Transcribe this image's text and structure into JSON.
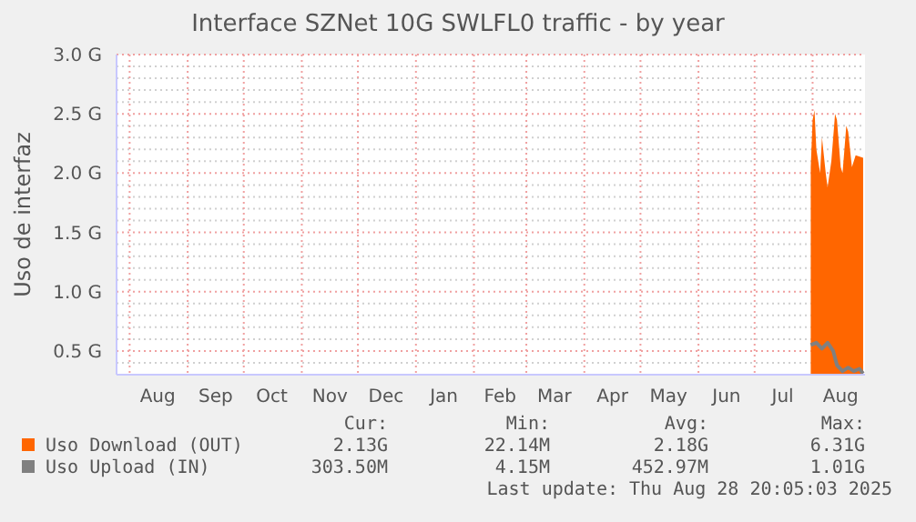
{
  "chart_data": {
    "type": "area",
    "title": "Interface SZNet 10G SWLFL0 traffic - by year",
    "ylabel": "Uso de interfaz",
    "xlim": [
      "2024-07-25",
      "2025-08-29"
    ],
    "xticks": [
      {
        "value": "2024-08-01",
        "label": null
      },
      {
        "value": "2024-08-16",
        "label": "Aug"
      },
      {
        "value": "2024-09-01",
        "label": null
      },
      {
        "value": "2024-09-16",
        "label": "Sep"
      },
      {
        "value": "2024-10-01",
        "label": null
      },
      {
        "value": "2024-10-16",
        "label": "Oct"
      },
      {
        "value": "2024-11-01",
        "label": null
      },
      {
        "value": "2024-11-16",
        "label": "Nov"
      },
      {
        "value": "2024-12-01",
        "label": null
      },
      {
        "value": "2024-12-16",
        "label": "Dec"
      },
      {
        "value": "2025-01-01",
        "label": null
      },
      {
        "value": "2025-01-16",
        "label": "Jan"
      },
      {
        "value": "2025-02-01",
        "label": null
      },
      {
        "value": "2025-02-15",
        "label": "Feb"
      },
      {
        "value": "2025-03-01",
        "label": null
      },
      {
        "value": "2025-03-16",
        "label": "Mar"
      },
      {
        "value": "2025-04-01",
        "label": null
      },
      {
        "value": "2025-04-16",
        "label": "Apr"
      },
      {
        "value": "2025-05-01",
        "label": null
      },
      {
        "value": "2025-05-16",
        "label": "May"
      },
      {
        "value": "2025-06-01",
        "label": null
      },
      {
        "value": "2025-06-16",
        "label": "Jun"
      },
      {
        "value": "2025-07-01",
        "label": null
      },
      {
        "value": "2025-07-16",
        "label": "Jul"
      },
      {
        "value": "2025-08-01",
        "label": null
      },
      {
        "value": "2025-08-16",
        "label": "Aug"
      }
    ],
    "ylim": [
      0.3,
      3.0
    ],
    "yticks": [
      {
        "value": 0.3,
        "label": null
      },
      {
        "value": 0.4,
        "label": null
      },
      {
        "value": 0.5,
        "label": "0.5 G"
      },
      {
        "value": 0.6,
        "label": null
      },
      {
        "value": 0.7,
        "label": null
      },
      {
        "value": 0.8,
        "label": null
      },
      {
        "value": 0.9,
        "label": null
      },
      {
        "value": 1.0,
        "label": "1.0 G"
      },
      {
        "value": 1.1,
        "label": null
      },
      {
        "value": 1.2,
        "label": null
      },
      {
        "value": 1.3,
        "label": null
      },
      {
        "value": 1.4,
        "label": null
      },
      {
        "value": 1.5,
        "label": "1.5 G"
      },
      {
        "value": 1.6,
        "label": null
      },
      {
        "value": 1.7,
        "label": null
      },
      {
        "value": 1.8,
        "label": null
      },
      {
        "value": 1.9,
        "label": null
      },
      {
        "value": 2.0,
        "label": "2.0 G"
      },
      {
        "value": 2.1,
        "label": null
      },
      {
        "value": 2.2,
        "label": null
      },
      {
        "value": 2.3,
        "label": null
      },
      {
        "value": 2.4,
        "label": null
      },
      {
        "value": 2.5,
        "label": "2.5 G"
      },
      {
        "value": 2.6,
        "label": null
      },
      {
        "value": 2.7,
        "label": null
      },
      {
        "value": 2.8,
        "label": null
      },
      {
        "value": 2.9,
        "label": null
      },
      {
        "value": 3.0,
        "label": "3.0 G"
      }
    ],
    "grid": true,
    "legend": "bottom",
    "series": [
      {
        "name": "Uso Download (OUT)",
        "color": "#ff6600",
        "x": [
          "2025-07-31",
          "2025-08-01",
          "2025-08-02",
          "2025-08-03",
          "2025-08-05",
          "2025-08-06",
          "2025-08-08",
          "2025-08-09",
          "2025-08-11",
          "2025-08-13",
          "2025-08-14",
          "2025-08-16",
          "2025-08-17",
          "2025-08-19",
          "2025-08-20",
          "2025-08-22",
          "2025-08-24",
          "2025-08-28"
        ],
        "values": [
          2.05,
          2.45,
          2.53,
          2.2,
          2.0,
          2.3,
          2.0,
          1.88,
          2.1,
          2.5,
          2.45,
          2.05,
          2.0,
          2.4,
          2.35,
          2.05,
          2.15,
          2.13
        ]
      },
      {
        "name": "Uso Upload (IN)",
        "type": "line",
        "color": "#808080",
        "x": [
          "2025-07-31",
          "2025-08-03",
          "2025-08-06",
          "2025-08-09",
          "2025-08-12",
          "2025-08-14",
          "2025-08-17",
          "2025-08-20",
          "2025-08-23",
          "2025-08-26",
          "2025-08-28"
        ],
        "values": [
          0.55,
          0.57,
          0.52,
          0.57,
          0.5,
          0.38,
          0.33,
          0.36,
          0.33,
          0.35,
          0.31
        ]
      }
    ],
    "annotations": [
      "Cur:",
      "Min:",
      "Avg:",
      "Max:",
      "2.13G",
      "22.14M",
      "2.18G",
      "6.31G",
      "303.50M",
      "4.15M",
      "452.97M",
      "1.01G",
      "Last update: Thu Aug 28 20:05:03 2025"
    ]
  }
}
